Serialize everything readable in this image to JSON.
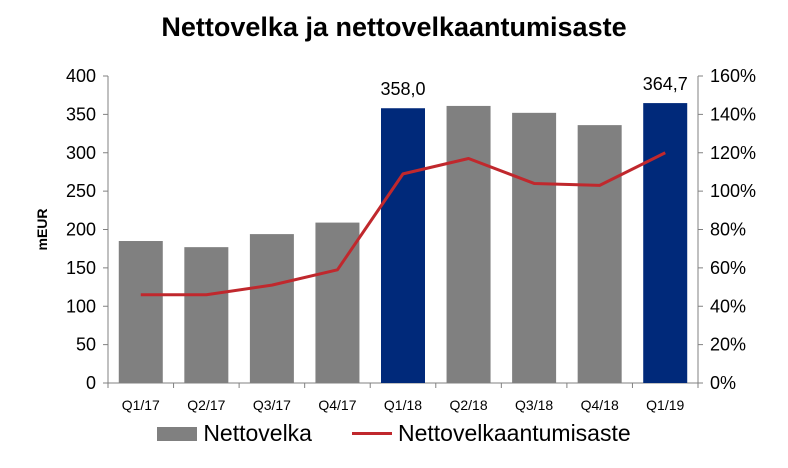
{
  "chart_data": {
    "type": "bar",
    "title": "Nettovelka ja nettovelkaantumisaste",
    "ylabel": "mEUR",
    "ylim": [
      0,
      400
    ],
    "y_ticks": [
      "0",
      "50",
      "100",
      "150",
      "200",
      "250",
      "300",
      "350",
      "400"
    ],
    "y2lim": [
      0,
      160
    ],
    "y2_ticks": [
      "0%",
      "20%",
      "40%",
      "60%",
      "80%",
      "100%",
      "120%",
      "140%",
      "160%"
    ],
    "categories": [
      "Q1/17",
      "Q2/17",
      "Q3/17",
      "Q4/17",
      "Q1/18",
      "Q2/18",
      "Q3/18",
      "Q4/18",
      "Q1/19"
    ],
    "series": [
      {
        "name": "Nettovelka",
        "type": "bar",
        "values": [
          185,
          177,
          194,
          209,
          358.0,
          361,
          352,
          336,
          364.7
        ],
        "colors": [
          "#808080",
          "#808080",
          "#808080",
          "#808080",
          "#00297a",
          "#808080",
          "#808080",
          "#808080",
          "#00297a"
        ]
      },
      {
        "name": "Nettovelkaantumisaste",
        "type": "line",
        "axis": "right",
        "color": "#c0282d",
        "values": [
          46,
          46,
          51,
          59,
          109,
          117,
          104,
          103,
          120
        ]
      }
    ],
    "data_labels": [
      {
        "index": 4,
        "text": "358,0"
      },
      {
        "index": 8,
        "text": "364,7"
      }
    ],
    "legend_position": "bottom"
  }
}
